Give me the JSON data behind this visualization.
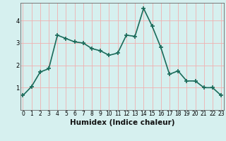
{
  "x": [
    0,
    1,
    2,
    3,
    4,
    5,
    6,
    7,
    8,
    9,
    10,
    11,
    12,
    13,
    14,
    15,
    16,
    17,
    18,
    19,
    20,
    21,
    22,
    23
  ],
  "y": [
    0.65,
    1.05,
    1.7,
    1.85,
    3.35,
    3.2,
    3.05,
    3.0,
    2.75,
    2.65,
    2.45,
    2.55,
    3.35,
    3.3,
    4.55,
    3.75,
    2.8,
    1.6,
    1.75,
    1.3,
    1.3,
    1.0,
    1.0,
    0.65
  ],
  "xlabel": "Humidex (Indice chaleur)",
  "line_color": "#1a6b5a",
  "bg_color": "#d6f0ef",
  "grid_color": "#f0b0b0",
  "axis_bg": "#d6f0ef",
  "ylim": [
    0.0,
    4.8
  ],
  "xlim": [
    -0.3,
    23.3
  ],
  "yticks": [
    1,
    2,
    3,
    4
  ],
  "xticks": [
    0,
    1,
    2,
    3,
    4,
    5,
    6,
    7,
    8,
    9,
    10,
    11,
    12,
    13,
    14,
    15,
    16,
    17,
    18,
    19,
    20,
    21,
    22,
    23
  ],
  "marker": "+",
  "markersize": 4,
  "linewidth": 1.2,
  "tick_fontsize": 5.5,
  "xlabel_fontsize": 7.5
}
